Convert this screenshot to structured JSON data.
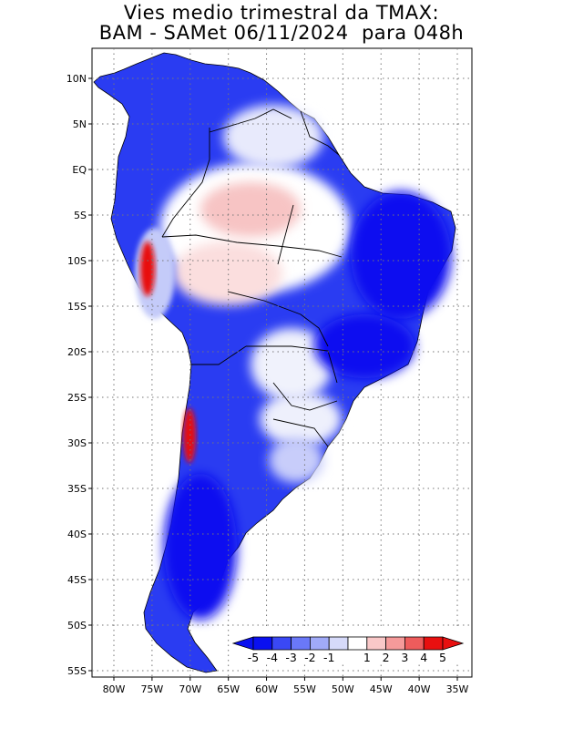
{
  "title_line1": "Vies medio trimestral da TMAX:",
  "title_line2": "BAM - SAMet 06/11/2024  para 048h",
  "map": {
    "lon_ticks": [
      "80W",
      "75W",
      "70W",
      "65W",
      "60W",
      "55W",
      "50W",
      "45W",
      "40W",
      "35W"
    ],
    "lat_ticks": [
      "10N",
      "5N",
      "EQ",
      "5S",
      "10S",
      "15S",
      "20S",
      "25S",
      "30S",
      "35S",
      "40S",
      "45S",
      "50S",
      "55S"
    ],
    "lon_range": [
      -83,
      -34
    ],
    "lat_range": [
      13,
      -56
    ],
    "region": "South America",
    "grid": "dotted"
  },
  "colorbar": {
    "labels": [
      "-5",
      "-4",
      "-3",
      "-2",
      "-1",
      "1",
      "2",
      "3",
      "4",
      "5"
    ],
    "colors": [
      "#0a10f0",
      "#3a48f5",
      "#6a78f8",
      "#a0aaf8",
      "#d6dafa",
      "#ffffff",
      "#f9c8c8",
      "#f59a9a",
      "#ee5c5c",
      "#e81010"
    ]
  }
}
